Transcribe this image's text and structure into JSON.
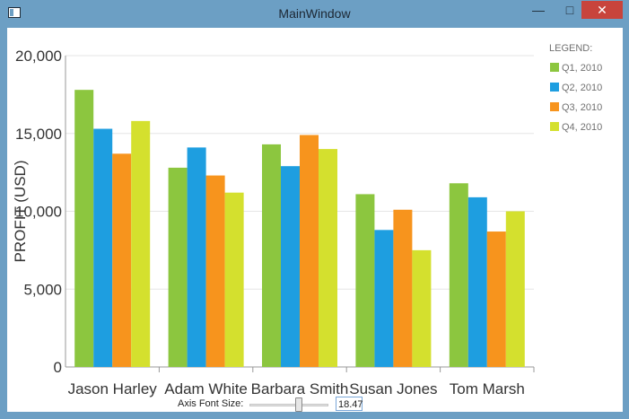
{
  "window": {
    "title": "MainWindow",
    "minimize_glyph": "—",
    "maximize_glyph": "□",
    "close_glyph": "✕"
  },
  "chart_data": {
    "type": "bar",
    "title": "",
    "xlabel": "",
    "ylabel": "PROFIT (USD)",
    "ylim": [
      0,
      20000
    ],
    "yticks": [
      "0",
      "5,000",
      "10,000",
      "15,000",
      "20,000"
    ],
    "ytick_values": [
      0,
      5000,
      10000,
      15000,
      20000
    ],
    "categories": [
      "Jason Harley",
      "Adam White",
      "Barbara Smith",
      "Susan Jones",
      "Tom Marsh"
    ],
    "series": [
      {
        "name": "Q1, 2010",
        "color": "#8cc63f",
        "values": [
          17800,
          12800,
          14300,
          11100,
          11800
        ]
      },
      {
        "name": "Q2, 2010",
        "color": "#1e9ee0",
        "values": [
          15300,
          14100,
          12900,
          8800,
          10900
        ]
      },
      {
        "name": "Q3, 2010",
        "color": "#f7941d",
        "values": [
          13700,
          12300,
          14900,
          10100,
          8700
        ]
      },
      {
        "name": "Q4, 2010",
        "color": "#d4e02e",
        "values": [
          15800,
          11200,
          14000,
          7500,
          10000
        ]
      }
    ],
    "grid": true,
    "legend_position": "right"
  },
  "legend": {
    "title": "LEGEND:"
  },
  "slider": {
    "label": "Axis Font Size:",
    "value": "18.47",
    "fraction": 0.62
  }
}
